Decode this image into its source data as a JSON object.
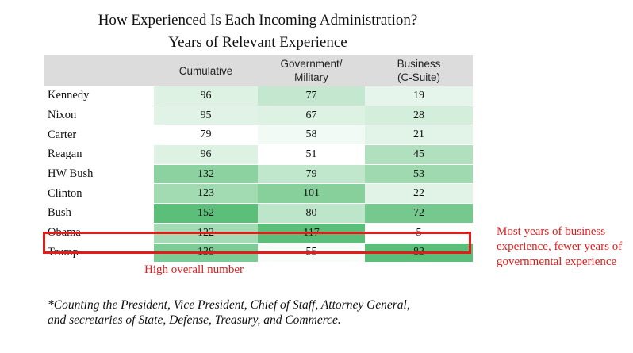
{
  "title_line1": "How Experienced Is Each Incoming Administration?",
  "title_line2": "Years of Relevant Experience",
  "chart_data": {
    "type": "table",
    "title": "How Experienced Is Each Incoming Administration? Years of Relevant Experience",
    "columns": [
      {
        "line1": "",
        "line2": "Cumulative"
      },
      {
        "line1": "Government/",
        "line2": "Military"
      },
      {
        "line1": "Business",
        "line2": "(C-Suite)"
      }
    ],
    "rows": [
      {
        "name": "Kennedy",
        "values": [
          96,
          77,
          19
        ]
      },
      {
        "name": "Nixon",
        "values": [
          95,
          67,
          28
        ]
      },
      {
        "name": "Carter",
        "values": [
          79,
          58,
          21
        ]
      },
      {
        "name": "Reagan",
        "values": [
          96,
          51,
          45
        ]
      },
      {
        "name": "HW Bush",
        "values": [
          132,
          79,
          53
        ]
      },
      {
        "name": "Clinton",
        "values": [
          123,
          101,
          22
        ]
      },
      {
        "name": "Bush",
        "values": [
          152,
          80,
          72
        ]
      },
      {
        "name": "Obama",
        "values": [
          122,
          117,
          5
        ]
      },
      {
        "name": "Trump",
        "values": [
          138,
          55,
          83
        ]
      }
    ],
    "color_scale": {
      "low": "#ffffff",
      "high": "#5cbf79"
    },
    "highlighted_row": "Trump",
    "highlight_color": "#e51b1b"
  },
  "annotations": {
    "left": "High overall number",
    "right": "Most years of business experience, fewer years of governmental experience"
  },
  "footnote": "*Counting the President, Vice President, Chief of Staff, Attorney General,\nand secretaries of State, Defense, Treasury, and Commerce."
}
